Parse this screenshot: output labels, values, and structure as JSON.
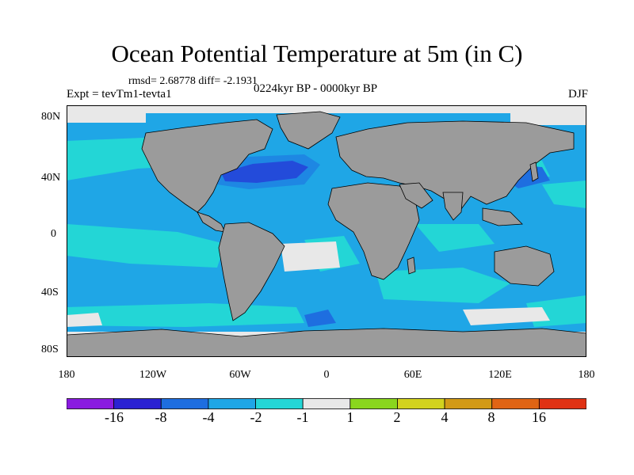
{
  "title": "Ocean Potential Temperature at 5m (in C)",
  "stats": "rmsd= 2.68778 diff= -2.1931",
  "experiment": "Expt = tevTm1-tevta1",
  "period": "0224kyr BP - 0000kyr BP",
  "season": "DJF",
  "lat_ticks": [
    "80N",
    "40N",
    "0",
    "40S",
    "80S"
  ],
  "lon_ticks": [
    "180",
    "120W",
    "60W",
    "0",
    "60E",
    "120E",
    "180"
  ],
  "colorbar": {
    "labels": [
      "-16",
      "-8",
      "-4",
      "-2",
      "-1",
      "1",
      "2",
      "4",
      "8",
      "16"
    ],
    "colors": [
      "#8a1be0",
      "#2b22d2",
      "#1e6ee0",
      "#1fa6e6",
      "#23d6d6",
      "#e8e8e8",
      "#8ad61e",
      "#d2d21e",
      "#d29a16",
      "#e06414",
      "#e03214"
    ]
  },
  "map_colors": {
    "land": "#9b9b9b",
    "coast": "#000000",
    "ocean_base": "#1fa6e6"
  }
}
